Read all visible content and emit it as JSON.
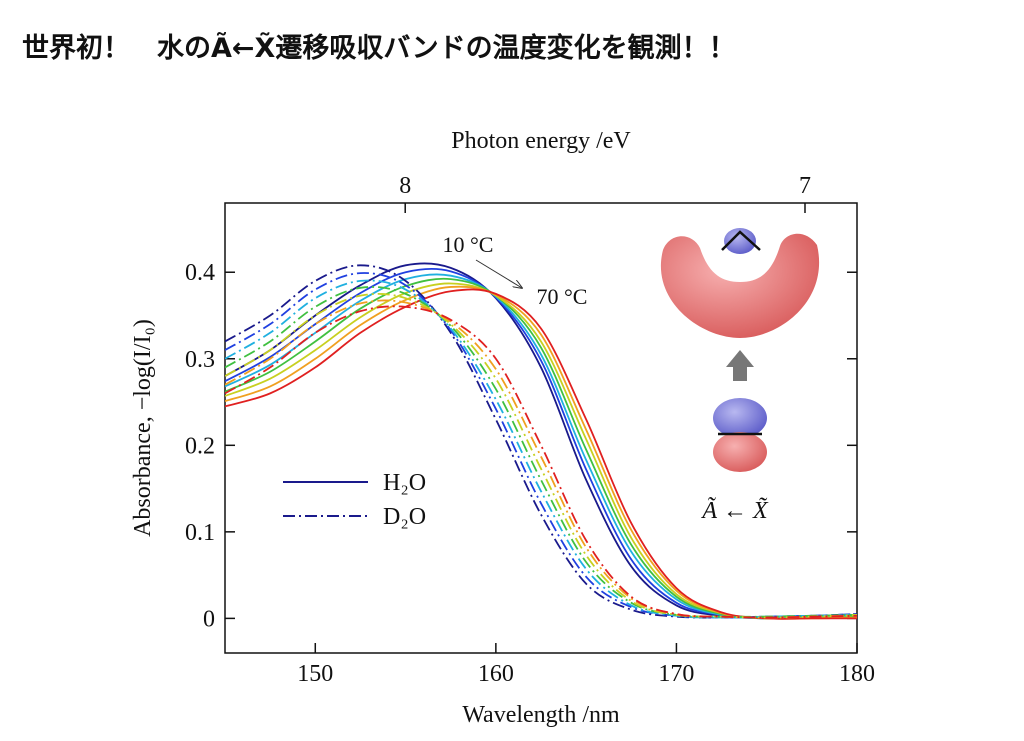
{
  "chart_data": {
    "type": "line",
    "title": "世界初！　水のÃ←X̃遷移吸収バンドの温度変化を観測！！",
    "xlabel": "Wavelength /nm",
    "ylabel": "Absorbance, −log(I/I₀)",
    "x2label": "Photon energy /eV",
    "x": [
      145,
      147.5,
      150,
      152.5,
      155,
      157.5,
      160,
      162.5,
      165,
      167.5,
      170,
      172.5,
      175,
      177.5,
      180
    ],
    "xlim": [
      145,
      180
    ],
    "xticks": [
      150,
      160,
      170,
      180
    ],
    "x2ticks": [
      8,
      7
    ],
    "ylim": [
      -0.04,
      0.48
    ],
    "yticks": [
      0,
      0.1,
      0.2,
      0.3,
      0.4
    ],
    "series": [
      {
        "name": "H₂O",
        "style": "solid",
        "curves": [
          {
            "color": "#1a1a8c",
            "values": [
              0.28,
              0.31,
              0.35,
              0.385,
              0.408,
              0.405,
              0.37,
              0.29,
              0.16,
              0.06,
              0.015,
              0.003,
              0,
              0.002,
              0.004
            ]
          },
          {
            "color": "#2040e0",
            "values": [
              0.274,
              0.302,
              0.34,
              0.376,
              0.4,
              0.401,
              0.371,
              0.298,
              0.172,
              0.068,
              0.018,
              0.004,
              0,
              0.002,
              0.003
            ]
          },
          {
            "color": "#20b0e0",
            "values": [
              0.268,
              0.293,
              0.33,
              0.367,
              0.392,
              0.396,
              0.372,
              0.305,
              0.183,
              0.077,
              0.022,
              0.004,
              0,
              0.001,
              0.003
            ]
          },
          {
            "color": "#40c040",
            "values": [
              0.262,
              0.285,
              0.32,
              0.358,
              0.384,
              0.392,
              0.373,
              0.313,
              0.195,
              0.085,
              0.025,
              0.005,
              0,
              0.001,
              0.002
            ]
          },
          {
            "color": "#c8d020",
            "values": [
              0.257,
              0.277,
              0.31,
              0.348,
              0.376,
              0.387,
              0.373,
              0.32,
              0.207,
              0.093,
              0.028,
              0.006,
              0,
              0.001,
              0.001
            ]
          },
          {
            "color": "#f0a020",
            "values": [
              0.251,
              0.268,
              0.3,
              0.339,
              0.368,
              0.383,
              0.374,
              0.328,
              0.218,
              0.102,
              0.032,
              0.006,
              0,
              0,
              0.001
            ]
          },
          {
            "color": "#e02020",
            "values": [
              0.245,
              0.26,
              0.29,
              0.33,
              0.36,
              0.378,
              0.375,
              0.335,
              0.23,
              0.11,
              0.035,
              0.007,
              0,
              0,
              0
            ]
          }
        ]
      },
      {
        "name": "D₂O",
        "style": "dashdot",
        "curves": [
          {
            "color": "#1a1a8c",
            "values": [
              0.32,
              0.35,
              0.39,
              0.408,
              0.39,
              0.33,
              0.23,
              0.12,
              0.04,
              0.01,
              0.002,
              0.001,
              0.002,
              0.003,
              0.005
            ]
          },
          {
            "color": "#2040e0",
            "values": [
              0.31,
              0.34,
              0.38,
              0.399,
              0.385,
              0.333,
              0.242,
              0.133,
              0.048,
              0.013,
              0.003,
              0.001,
              0.002,
              0.003,
              0.005
            ]
          },
          {
            "color": "#20b0e0",
            "values": [
              0.3,
              0.33,
              0.37,
              0.39,
              0.38,
              0.335,
              0.253,
              0.147,
              0.057,
              0.015,
              0.003,
              0.001,
              0.002,
              0.003,
              0.004
            ]
          },
          {
            "color": "#40c040",
            "values": [
              0.29,
              0.32,
              0.36,
              0.382,
              0.375,
              0.338,
              0.265,
              0.16,
              0.065,
              0.018,
              0.004,
              0.002,
              0.002,
              0.003,
              0.004
            ]
          },
          {
            "color": "#c8d020",
            "values": [
              0.28,
              0.31,
              0.35,
              0.373,
              0.37,
              0.34,
              0.277,
              0.173,
              0.073,
              0.02,
              0.004,
              0.002,
              0.001,
              0.002,
              0.004
            ]
          },
          {
            "color": "#f0a020",
            "values": [
              0.27,
              0.3,
              0.34,
              0.364,
              0.365,
              0.343,
              0.288,
              0.187,
              0.082,
              0.023,
              0.005,
              0.002,
              0.001,
              0.002,
              0.003
            ]
          },
          {
            "color": "#e02020",
            "values": [
              0.26,
              0.29,
              0.33,
              0.355,
              0.36,
              0.345,
              0.3,
              0.2,
              0.09,
              0.025,
              0.005,
              0.002,
              0.001,
              0.002,
              0.003
            ]
          }
        ]
      }
    ],
    "annotations": [
      "10 °C",
      "70 °C",
      "Ã ← X̃"
    ]
  }
}
